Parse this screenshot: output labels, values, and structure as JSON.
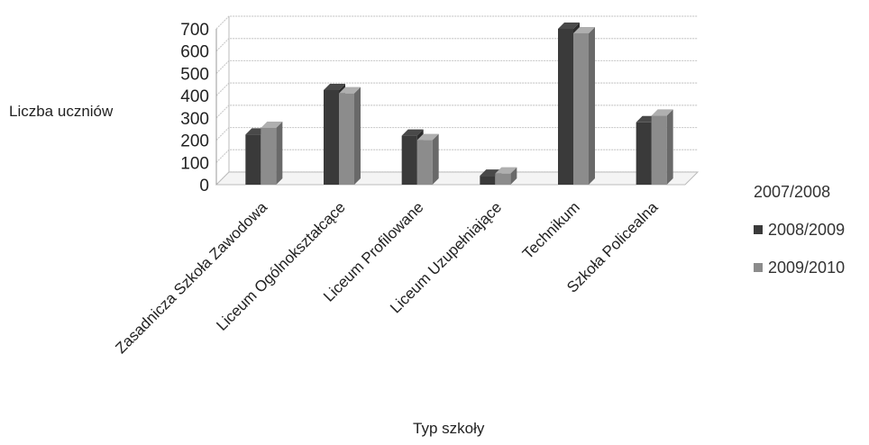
{
  "chart_data": {
    "type": "bar",
    "xlabel": "Typ szkoły",
    "ylabel": "Liczba uczniów",
    "ylim": [
      0,
      700
    ],
    "yticks": [
      0,
      100,
      200,
      300,
      400,
      500,
      600,
      700
    ],
    "grid": true,
    "legend_position": "right",
    "categories": [
      "Zasadnicza Szkoła Zawodowa",
      "Liceum Ogólnokształcące",
      "Liceum Profilowane",
      "Liceum Uzupełniające",
      "Technikum",
      "Szkoła Policealna"
    ],
    "series": [
      {
        "name": "2007/2008",
        "values": [
          null,
          null,
          null,
          null,
          null,
          null
        ],
        "color": "#ffffff"
      },
      {
        "name": "2008/2009",
        "values": [
          225,
          425,
          220,
          40,
          700,
          280
        ],
        "color": "#3a3a3a"
      },
      {
        "name": "2009/2010",
        "values": [
          255,
          410,
          200,
          50,
          680,
          310
        ],
        "color": "#8c8c8c"
      }
    ]
  }
}
